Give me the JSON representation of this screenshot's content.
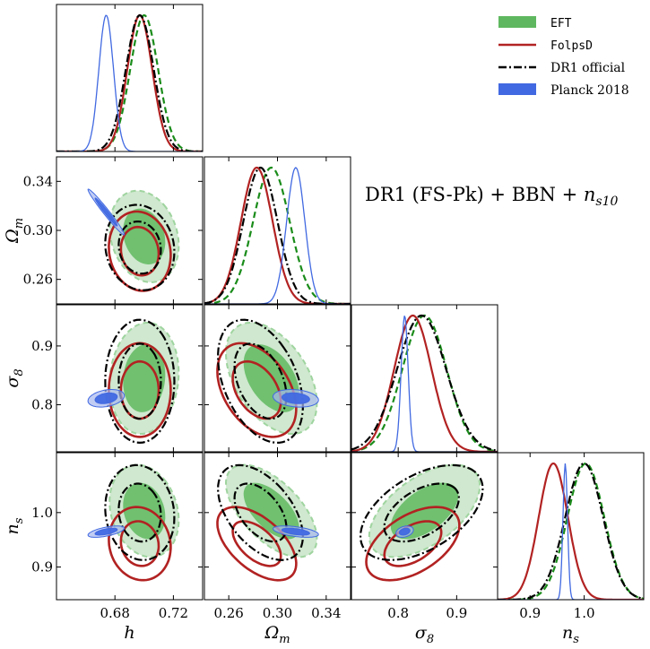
{
  "figure_title": "DR1 (FS-Pk) + BBN + n_s10",
  "legend": [
    {
      "label": "EFT",
      "style": "filled",
      "color": "#5fb85f",
      "mono": true
    },
    {
      "label": "FolpsD",
      "style": "line",
      "color": "#b22222",
      "mono": true
    },
    {
      "label": "DR1 official",
      "style": "dashdot",
      "color": "#000000",
      "mono": false
    },
    {
      "label": "Planck 2018",
      "style": "filled",
      "color": "#4169e1",
      "mono": false
    }
  ],
  "colors": {
    "EFT": "#5fb85f",
    "EFT_light": "#bfe0bf",
    "FolpsD": "#b22222",
    "DR1": "#000000",
    "Planck": "#4169e1",
    "Planck_light": "#a8b8f0"
  },
  "chart_data": {
    "type": "corner",
    "parameters": [
      {
        "name": "h",
        "label": "h",
        "range": [
          0.64,
          0.74
        ],
        "ticks": [
          0.68,
          0.72
        ],
        "tick_labels": [
          "0.68",
          "0.72"
        ]
      },
      {
        "name": "Omega_m",
        "label": "Ω_m",
        "range": [
          0.24,
          0.36
        ],
        "ticks": [
          0.26,
          0.3,
          0.34
        ],
        "tick_labels": [
          "0.26",
          "0.30",
          "0.34"
        ]
      },
      {
        "name": "sigma8",
        "label": "σ_8",
        "range": [
          0.72,
          0.97
        ],
        "ticks": [
          0.8,
          0.9
        ],
        "tick_labels": [
          "0.8",
          "0.9"
        ]
      },
      {
        "name": "ns",
        "label": "n_s",
        "range": [
          0.84,
          1.11
        ],
        "ticks": [
          0.9,
          1.0
        ],
        "tick_labels": [
          "0.9",
          "1.0"
        ]
      }
    ],
    "series": [
      {
        "name": "EFT",
        "mean": [
          0.7,
          0.295,
          0.845,
          1.003
        ],
        "sigma": [
          0.0095,
          0.015,
          0.038,
          0.034
        ],
        "corr": {
          "1-0": -0.2,
          "2-0": 0.1,
          "3-0": -0.2,
          "2-1": -0.45,
          "3-1": -0.6,
          "3-2": 0.55
        }
      },
      {
        "name": "FolpsD",
        "mean": [
          0.697,
          0.283,
          0.825,
          0.943
        ],
        "sigma": [
          0.0085,
          0.013,
          0.032,
          0.027
        ],
        "corr": {
          "1-0": -0.1,
          "2-0": 0.0,
          "3-0": -0.1,
          "2-1": -0.4,
          "3-1": -0.55,
          "3-2": 0.5
        }
      },
      {
        "name": "DR1 official",
        "mean": [
          0.697,
          0.286,
          0.84,
          1.0
        ],
        "sigma": [
          0.0095,
          0.014,
          0.042,
          0.035
        ],
        "corr": {
          "1-0": -0.1,
          "2-0": 0.0,
          "3-0": -0.1,
          "2-1": -0.4,
          "3-1": -0.5,
          "3-2": 0.5
        }
      },
      {
        "name": "Planck 2018",
        "mean": [
          0.674,
          0.315,
          0.811,
          0.965
        ],
        "sigma": [
          0.005,
          0.0075,
          0.006,
          0.0042
        ],
        "corr": {
          "1-0": -0.98,
          "2-0": 0.3,
          "3-0": 0.6,
          "2-1": -0.2,
          "3-1": -0.5,
          "3-2": 0.3
        }
      }
    ]
  }
}
